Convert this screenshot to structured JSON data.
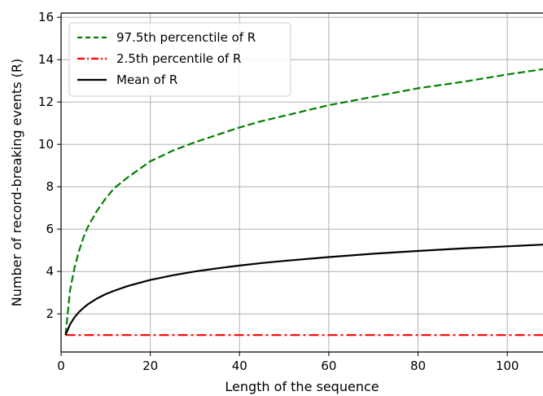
{
  "chart_data": {
    "type": "line",
    "title": "",
    "xlabel": "Length of the sequence",
    "ylabel": "Number of record-breaking events (R)",
    "xlim": [
      0,
      108
    ],
    "ylim": [
      0.2,
      16.2
    ],
    "xticks": [
      0,
      20,
      40,
      60,
      80,
      100
    ],
    "yticks": [
      2,
      4,
      6,
      8,
      10,
      12,
      14,
      16
    ],
    "grid": true,
    "legend_position": "top-left",
    "series": [
      {
        "name": "97.5th percenctile of R",
        "color": "#008000",
        "style": "dashed",
        "x": [
          1,
          2,
          3,
          4,
          5,
          6,
          8,
          10,
          12,
          15,
          20,
          25,
          30,
          35,
          40,
          45,
          50,
          60,
          70,
          80,
          90,
          100,
          108
        ],
        "y": [
          1.0,
          3.1,
          4.15,
          4.95,
          5.6,
          6.1,
          6.85,
          7.45,
          7.95,
          8.45,
          9.2,
          9.7,
          10.1,
          10.45,
          10.8,
          11.1,
          11.35,
          11.85,
          12.25,
          12.65,
          12.95,
          13.3,
          13.55
        ]
      },
      {
        "name": "2.5th percentile of R",
        "color": "#ff0000",
        "style": "dashdot",
        "x": [
          1,
          108
        ],
        "y": [
          1.0,
          1.0
        ]
      },
      {
        "name": "Mean of R",
        "color": "#000000",
        "style": "solid",
        "x": [
          1,
          2,
          3,
          4,
          5,
          6,
          8,
          10,
          12,
          15,
          20,
          25,
          30,
          35,
          40,
          45,
          50,
          60,
          70,
          80,
          90,
          100,
          108
        ],
        "y": [
          1.0,
          1.5,
          1.83,
          2.08,
          2.28,
          2.45,
          2.72,
          2.93,
          3.1,
          3.32,
          3.6,
          3.82,
          4.0,
          4.15,
          4.28,
          4.4,
          4.5,
          4.68,
          4.84,
          4.97,
          5.09,
          5.19,
          5.27
        ]
      }
    ]
  }
}
